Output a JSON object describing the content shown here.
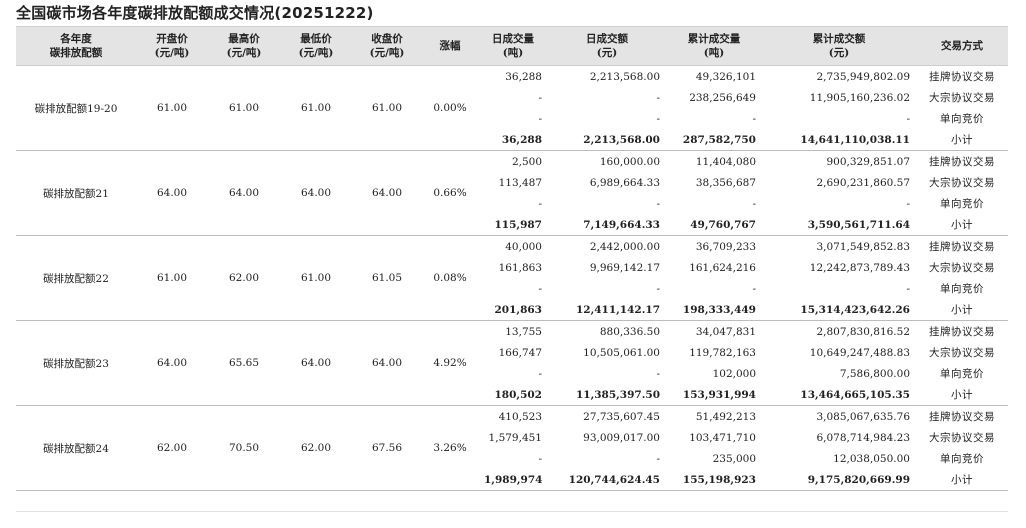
{
  "title": "全国碳市场各年度碳排放配额成交情况(20251222)",
  "headers": {
    "name": [
      "各年度",
      "碳排放配额"
    ],
    "open": [
      "开盘价",
      "(元/吨)"
    ],
    "high": [
      "最高价",
      "(元/吨)"
    ],
    "low": [
      "最低价",
      "(元/吨)"
    ],
    "close": [
      "收盘价",
      "(元/吨)"
    ],
    "change": [
      "涨幅"
    ],
    "day_vol": [
      "日成交量",
      "(吨)"
    ],
    "day_amt": [
      "日成交额",
      "(元)"
    ],
    "cum_vol": [
      "累计成交量",
      "(吨)"
    ],
    "cum_amt": [
      "累计成交额",
      "(元)"
    ],
    "mode": [
      "交易方式"
    ]
  },
  "groups": [
    {
      "name": "碳排放配额19-20",
      "open": "61.00",
      "high": "61.00",
      "low": "61.00",
      "close": "61.00",
      "change": "0.00%",
      "rows": [
        {
          "day_vol": "36,288",
          "day_amt": "2,213,568.00",
          "cum_vol": "49,326,101",
          "cum_amt": "2,735,949,802.09",
          "mode": "挂牌协议交易"
        },
        {
          "day_vol": "-",
          "day_amt": "-",
          "cum_vol": "238,256,649",
          "cum_amt": "11,905,160,236.02",
          "mode": "大宗协议交易"
        },
        {
          "day_vol": "-",
          "day_amt": "-",
          "cum_vol": "-",
          "cum_amt": "-",
          "mode": "单向竞价"
        },
        {
          "day_vol": "36,288",
          "day_amt": "2,213,568.00",
          "cum_vol": "287,582,750",
          "cum_amt": "14,641,110,038.11",
          "mode": "小计"
        }
      ]
    },
    {
      "name": "碳排放配额21",
      "open": "64.00",
      "high": "64.00",
      "low": "64.00",
      "close": "64.00",
      "change": "0.66%",
      "rows": [
        {
          "day_vol": "2,500",
          "day_amt": "160,000.00",
          "cum_vol": "11,404,080",
          "cum_amt": "900,329,851.07",
          "mode": "挂牌协议交易"
        },
        {
          "day_vol": "113,487",
          "day_amt": "6,989,664.33",
          "cum_vol": "38,356,687",
          "cum_amt": "2,690,231,860.57",
          "mode": "大宗协议交易"
        },
        {
          "day_vol": "-",
          "day_amt": "-",
          "cum_vol": "-",
          "cum_amt": "-",
          "mode": "单向竞价"
        },
        {
          "day_vol": "115,987",
          "day_amt": "7,149,664.33",
          "cum_vol": "49,760,767",
          "cum_amt": "3,590,561,711.64",
          "mode": "小计"
        }
      ]
    },
    {
      "name": "碳排放配额22",
      "open": "61.00",
      "high": "62.00",
      "low": "61.00",
      "close": "61.05",
      "change": "0.08%",
      "rows": [
        {
          "day_vol": "40,000",
          "day_amt": "2,442,000.00",
          "cum_vol": "36,709,233",
          "cum_amt": "3,071,549,852.83",
          "mode": "挂牌协议交易"
        },
        {
          "day_vol": "161,863",
          "day_amt": "9,969,142.17",
          "cum_vol": "161,624,216",
          "cum_amt": "12,242,873,789.43",
          "mode": "大宗协议交易"
        },
        {
          "day_vol": "-",
          "day_amt": "-",
          "cum_vol": "-",
          "cum_amt": "-",
          "mode": "单向竞价"
        },
        {
          "day_vol": "201,863",
          "day_amt": "12,411,142.17",
          "cum_vol": "198,333,449",
          "cum_amt": "15,314,423,642.26",
          "mode": "小计"
        }
      ]
    },
    {
      "name": "碳排放配额23",
      "open": "64.00",
      "high": "65.65",
      "low": "64.00",
      "close": "64.00",
      "change": "4.92%",
      "rows": [
        {
          "day_vol": "13,755",
          "day_amt": "880,336.50",
          "cum_vol": "34,047,831",
          "cum_amt": "2,807,830,816.52",
          "mode": "挂牌协议交易"
        },
        {
          "day_vol": "166,747",
          "day_amt": "10,505,061.00",
          "cum_vol": "119,782,163",
          "cum_amt": "10,649,247,488.83",
          "mode": "大宗协议交易"
        },
        {
          "day_vol": "-",
          "day_amt": "-",
          "cum_vol": "102,000",
          "cum_amt": "7,586,800.00",
          "mode": "单向竞价"
        },
        {
          "day_vol": "180,502",
          "day_amt": "11,385,397.50",
          "cum_vol": "153,931,994",
          "cum_amt": "13,464,665,105.35",
          "mode": "小计"
        }
      ]
    },
    {
      "name": "碳排放配额24",
      "open": "62.00",
      "high": "70.50",
      "low": "62.00",
      "close": "67.56",
      "change": "3.26%",
      "rows": [
        {
          "day_vol": "410,523",
          "day_amt": "27,735,607.45",
          "cum_vol": "51,492,213",
          "cum_amt": "3,085,067,635.76",
          "mode": "挂牌协议交易"
        },
        {
          "day_vol": "1,579,451",
          "day_amt": "93,009,017.00",
          "cum_vol": "103,471,710",
          "cum_amt": "6,078,714,984.23",
          "mode": "大宗协议交易"
        },
        {
          "day_vol": "-",
          "day_amt": "-",
          "cum_vol": "235,000",
          "cum_amt": "12,038,050.00",
          "mode": "单向竞价"
        },
        {
          "day_vol": "1,989,974",
          "day_amt": "120,744,624.45",
          "cum_vol": "155,198,923",
          "cum_amt": "9,175,820,669.99",
          "mode": "小计"
        }
      ]
    }
  ]
}
